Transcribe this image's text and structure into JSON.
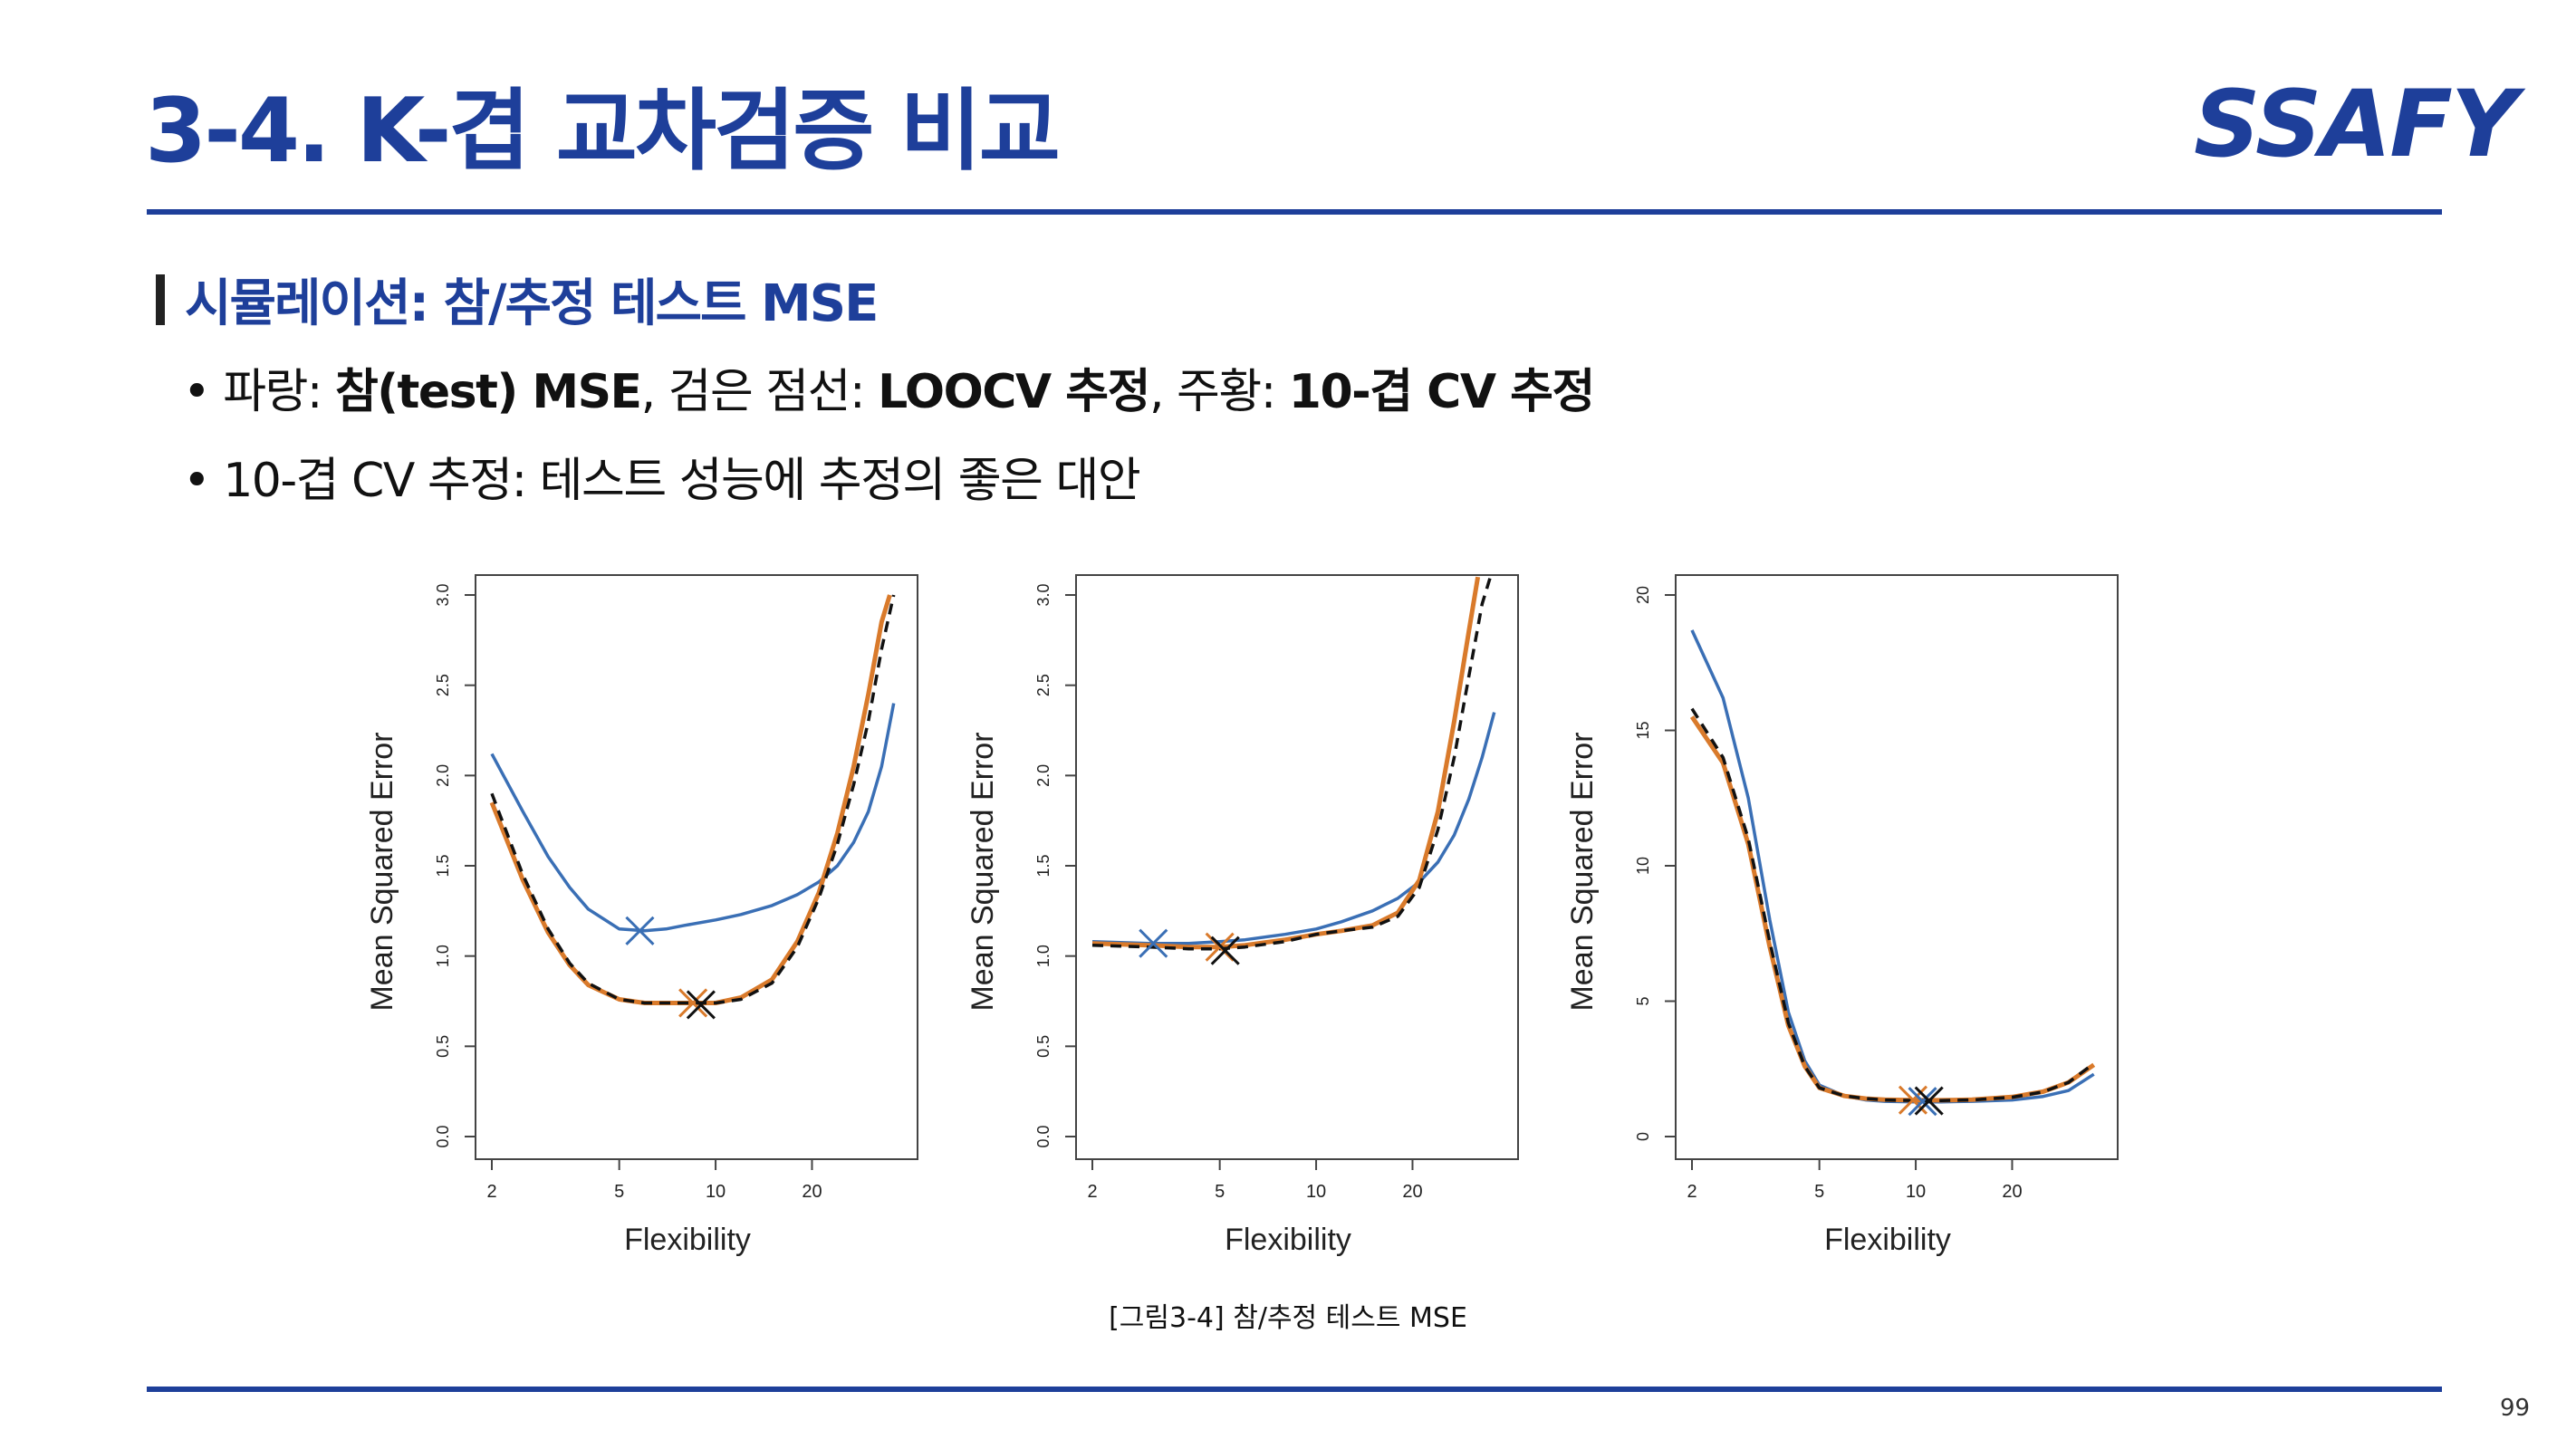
{
  "header": {
    "title": "3-4. K-겹 교차검증 비교",
    "logo": "SSAFY"
  },
  "section": {
    "heading": "시뮬레이션: 참/추정 테스트 MSE"
  },
  "bullets": {
    "b1": {
      "p1": "• 파랑: ",
      "p2": "참(test) MSE",
      "p3": ", 검은 점선: ",
      "p4": "LOOCV 추정",
      "p5": ", 주황: ",
      "p6": "10-겹 CV 추정"
    },
    "b2": "• 10-겹 CV 추정: 테스트 성능에 추정의 좋은 대안"
  },
  "figure": {
    "caption": "[그림3-4] 참/추정 테스트 MSE"
  },
  "page": {
    "number": "99"
  },
  "colors": {
    "accent": "#1e3f9a",
    "true_mse": "#3a6fb5",
    "cv10": "#d97a2b",
    "loocv": "#111111"
  },
  "chart_data": [
    {
      "type": "line",
      "xlabel": "Flexibility",
      "ylabel": "Mean Squared Error",
      "x_scale": "log",
      "xlim": [
        2,
        38
      ],
      "ylim": [
        0,
        3.0
      ],
      "xticks": [
        2,
        5,
        10,
        20
      ],
      "xtick_labels": [
        "2",
        "5",
        "10",
        "20"
      ],
      "yticks": [
        0,
        0.5,
        1.0,
        1.5,
        2.0,
        2.5,
        3.0
      ],
      "ytick_labels": [
        "0.0",
        "0.5",
        "1.0",
        "1.5",
        "2.0",
        "2.5",
        "3.0"
      ],
      "series": [
        {
          "key": "true",
          "x": [
            2,
            2.5,
            3,
            3.5,
            4,
            5,
            6,
            7,
            8,
            10,
            12,
            15,
            18,
            21,
            24,
            27,
            30,
            33,
            36
          ],
          "values": [
            2.12,
            1.8,
            1.55,
            1.38,
            1.26,
            1.15,
            1.14,
            1.15,
            1.17,
            1.2,
            1.23,
            1.28,
            1.34,
            1.41,
            1.5,
            1.63,
            1.8,
            2.05,
            2.4
          ]
        },
        {
          "key": "loocv",
          "x": [
            2,
            2.5,
            3,
            3.5,
            4,
            5,
            6,
            7,
            8,
            10,
            12,
            15,
            18,
            21,
            24,
            27,
            30,
            33,
            36
          ],
          "values": [
            1.9,
            1.45,
            1.15,
            0.96,
            0.85,
            0.76,
            0.74,
            0.74,
            0.74,
            0.74,
            0.76,
            0.85,
            1.05,
            1.32,
            1.62,
            1.95,
            2.3,
            2.7,
            3.0
          ]
        },
        {
          "key": "cv10",
          "x": [
            2,
            2.5,
            3,
            3.5,
            4,
            5,
            6,
            7,
            8,
            10,
            12,
            15,
            18,
            21,
            24,
            27,
            30,
            33,
            35
          ],
          "values": [
            1.85,
            1.42,
            1.13,
            0.95,
            0.84,
            0.76,
            0.74,
            0.74,
            0.74,
            0.74,
            0.77,
            0.87,
            1.08,
            1.35,
            1.68,
            2.05,
            2.45,
            2.85,
            3.0
          ]
        }
      ],
      "markers": [
        {
          "key": "true",
          "x": 5.8,
          "y": 1.14
        },
        {
          "key": "cv10",
          "x": 8.5,
          "y": 0.74
        },
        {
          "key": "loocv",
          "x": 9.0,
          "y": 0.73
        }
      ]
    },
    {
      "type": "line",
      "xlabel": "Flexibility",
      "ylabel": "Mean Squared Error",
      "x_scale": "log",
      "xlim": [
        2,
        38
      ],
      "ylim": [
        0,
        3.0
      ],
      "xticks": [
        2,
        5,
        10,
        20
      ],
      "xtick_labels": [
        "2",
        "5",
        "10",
        "20"
      ],
      "yticks": [
        0,
        0.5,
        1.0,
        1.5,
        2.0,
        2.5,
        3.0
      ],
      "ytick_labels": [
        "0.0",
        "0.5",
        "1.0",
        "1.5",
        "2.0",
        "2.5",
        "3.0"
      ],
      "series": [
        {
          "key": "true",
          "x": [
            2,
            3,
            4,
            5,
            6,
            8,
            10,
            12,
            15,
            18,
            21,
            24,
            27,
            30,
            33,
            36
          ],
          "values": [
            1.08,
            1.07,
            1.07,
            1.08,
            1.09,
            1.12,
            1.15,
            1.19,
            1.25,
            1.32,
            1.41,
            1.52,
            1.67,
            1.87,
            2.1,
            2.35
          ]
        },
        {
          "key": "loocv",
          "x": [
            2,
            3,
            4,
            5,
            6,
            8,
            10,
            12,
            15,
            18,
            21,
            24,
            27,
            30,
            33,
            35
          ],
          "values": [
            1.06,
            1.05,
            1.04,
            1.04,
            1.05,
            1.08,
            1.12,
            1.14,
            1.16,
            1.22,
            1.38,
            1.7,
            2.1,
            2.55,
            2.95,
            3.1
          ]
        },
        {
          "key": "cv10",
          "x": [
            2,
            3,
            4,
            5,
            6,
            8,
            10,
            12,
            15,
            18,
            21,
            24,
            27,
            30,
            32
          ],
          "values": [
            1.07,
            1.06,
            1.05,
            1.05,
            1.06,
            1.09,
            1.12,
            1.14,
            1.17,
            1.24,
            1.42,
            1.8,
            2.3,
            2.8,
            3.1
          ]
        }
      ],
      "markers": [
        {
          "key": "true",
          "x": 3.1,
          "y": 1.07
        },
        {
          "key": "cv10",
          "x": 5.0,
          "y": 1.05
        },
        {
          "key": "loocv",
          "x": 5.2,
          "y": 1.03
        }
      ]
    },
    {
      "type": "line",
      "xlabel": "Flexibility",
      "ylabel": "Mean Squared Error",
      "x_scale": "log",
      "xlim": [
        2,
        38
      ],
      "ylim": [
        0,
        20
      ],
      "xticks": [
        2,
        5,
        10,
        20
      ],
      "xtick_labels": [
        "2",
        "5",
        "10",
        "20"
      ],
      "yticks": [
        0,
        5,
        10,
        15,
        20
      ],
      "ytick_labels": [
        "0",
        "5",
        "10",
        "15",
        "20"
      ],
      "series": [
        {
          "key": "true",
          "x": [
            2,
            2.5,
            3,
            3.5,
            4,
            4.5,
            5,
            6,
            7,
            8,
            10,
            12,
            15,
            20,
            25,
            30,
            36
          ],
          "values": [
            18.7,
            16.2,
            12.5,
            8.0,
            4.6,
            2.8,
            1.9,
            1.5,
            1.35,
            1.3,
            1.28,
            1.28,
            1.3,
            1.35,
            1.48,
            1.7,
            2.3
          ]
        },
        {
          "key": "loocv",
          "x": [
            2,
            2.5,
            3,
            3.5,
            4,
            4.5,
            5,
            6,
            7,
            8,
            10,
            12,
            15,
            20,
            25,
            30,
            36
          ],
          "values": [
            15.8,
            14.0,
            11.0,
            7.2,
            4.2,
            2.6,
            1.8,
            1.5,
            1.4,
            1.35,
            1.33,
            1.33,
            1.35,
            1.45,
            1.65,
            2.0,
            2.7
          ]
        },
        {
          "key": "cv10",
          "x": [
            2,
            2.5,
            3,
            3.5,
            4,
            4.5,
            5,
            6,
            7,
            8,
            10,
            12,
            15,
            20,
            25,
            30,
            36
          ],
          "values": [
            15.5,
            13.8,
            10.8,
            7.0,
            4.1,
            2.6,
            1.8,
            1.5,
            1.4,
            1.36,
            1.34,
            1.34,
            1.36,
            1.46,
            1.66,
            2.0,
            2.65
          ]
        }
      ],
      "markers": [
        {
          "key": "cv10",
          "x": 9.8,
          "y": 1.35
        },
        {
          "key": "true",
          "x": 10.5,
          "y": 1.3
        },
        {
          "key": "loocv",
          "x": 11.0,
          "y": 1.32
        }
      ]
    }
  ]
}
